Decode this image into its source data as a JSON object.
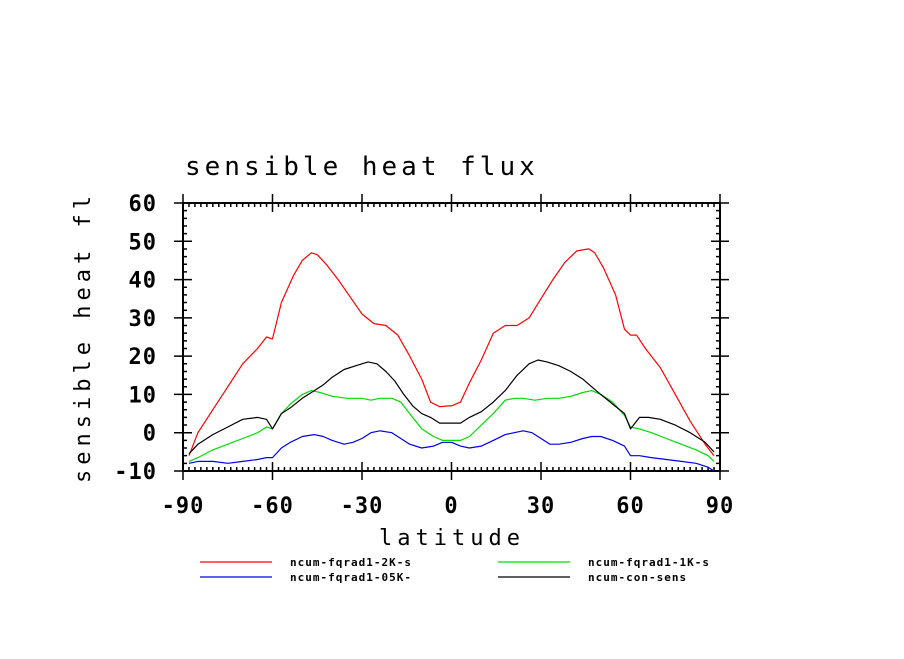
{
  "chart_data": {
    "type": "line",
    "title": "sensible heat flux",
    "xlabel": "latitude",
    "ylabel": "sensible heat fl",
    "xlim": [
      -90,
      90
    ],
    "ylim": [
      -10,
      60
    ],
    "xticks": [
      -90,
      -60,
      -30,
      0,
      30,
      60,
      90
    ],
    "yticks": [
      -10,
      0,
      10,
      20,
      30,
      40,
      50,
      60
    ],
    "xtick_labels": [
      "-90",
      "-60",
      "-30",
      "0",
      "30",
      "60",
      "90"
    ],
    "ytick_labels": [
      "-10",
      "0",
      "10",
      "20",
      "30",
      "40",
      "50",
      "60"
    ],
    "grid": false,
    "legend": "bottom",
    "series": [
      {
        "name": "ncum-fqrad1-2K-s",
        "color": "#ff0000",
        "x": [
          -88,
          -85,
          -80,
          -75,
          -70,
          -65,
          -62,
          -60,
          -57,
          -53,
          -50,
          -47,
          -45,
          -42,
          -38,
          -34,
          -30,
          -26,
          -22,
          -18,
          -14,
          -10,
          -7,
          -4,
          -1,
          0,
          3,
          6,
          10,
          14,
          18,
          22,
          26,
          30,
          34,
          38,
          42,
          46,
          48,
          51,
          55,
          58,
          60,
          62,
          65,
          70,
          75,
          80,
          85,
          88
        ],
        "y": [
          -6,
          0,
          6,
          12,
          18,
          22,
          25,
          24.5,
          34,
          41,
          45,
          47,
          46.5,
          44,
          40,
          35.5,
          31,
          28.5,
          28,
          25.5,
          20,
          14,
          8,
          6.8,
          7,
          7,
          8,
          13,
          19,
          26,
          28,
          28,
          30,
          35,
          40,
          44.5,
          47.5,
          48,
          47,
          43,
          36,
          27,
          25.5,
          25.5,
          22,
          17,
          10,
          3,
          -3,
          -6
        ]
      },
      {
        "name": "ncum-fqrad1-1K-s",
        "color": "#00dd00",
        "x": [
          -88,
          -85,
          -80,
          -75,
          -70,
          -65,
          -62,
          -60,
          -57,
          -54,
          -50,
          -47,
          -44,
          -40,
          -35,
          -30,
          -27,
          -24,
          -20,
          -17,
          -14,
          -10,
          -6,
          -3,
          0,
          3,
          6,
          10,
          14,
          18,
          21,
          24,
          28,
          32,
          36,
          40,
          44,
          47,
          50,
          54,
          58,
          60,
          63,
          67,
          72,
          77,
          82,
          86,
          88
        ],
        "y": [
          -7.5,
          -6.5,
          -4.5,
          -3,
          -1.5,
          0,
          1.5,
          1,
          5,
          7.5,
          10,
          11,
          10.5,
          9.5,
          9,
          9,
          8.5,
          9,
          9,
          8,
          5,
          1,
          -1,
          -2,
          -2,
          -2,
          -1,
          2,
          5,
          8.5,
          9,
          9,
          8.5,
          9,
          9,
          9.5,
          10.5,
          11,
          10,
          8,
          4.5,
          1.5,
          1,
          0,
          -1.5,
          -3,
          -4.5,
          -6,
          -7.5
        ]
      },
      {
        "name": "ncum-fqrad1-05K-",
        "color": "#0000ee",
        "x": [
          -88,
          -85,
          -80,
          -75,
          -70,
          -65,
          -62,
          -60,
          -57,
          -54,
          -50,
          -46,
          -43,
          -40,
          -36,
          -33,
          -30,
          -27,
          -24,
          -20,
          -17,
          -14,
          -10,
          -6,
          -3,
          0,
          3,
          6,
          10,
          14,
          18,
          21,
          24,
          27,
          30,
          33,
          36,
          40,
          44,
          47,
          50,
          54,
          58,
          60,
          63,
          67,
          72,
          77,
          82,
          86,
          88
        ],
        "y": [
          -8,
          -7.5,
          -7.5,
          -8,
          -7.5,
          -7,
          -6.5,
          -6.5,
          -4,
          -2.5,
          -1,
          -0.5,
          -1,
          -2,
          -3,
          -2.5,
          -1.5,
          0,
          0.5,
          0,
          -1.5,
          -3,
          -4,
          -3.5,
          -2.5,
          -2.5,
          -3.5,
          -4,
          -3.5,
          -2,
          -0.5,
          0,
          0.5,
          0,
          -1.5,
          -3,
          -3,
          -2.5,
          -1.5,
          -1,
          -1,
          -2,
          -3.5,
          -6,
          -6,
          -6.5,
          -7,
          -7.5,
          -8,
          -9,
          -10
        ]
      },
      {
        "name": "ncum-con-sens",
        "color": "#000000",
        "x": [
          -88,
          -85,
          -80,
          -75,
          -70,
          -65,
          -62,
          -60,
          -57,
          -54,
          -50,
          -46,
          -43,
          -40,
          -36,
          -32,
          -28,
          -25,
          -22,
          -19,
          -16,
          -13,
          -10,
          -7,
          -4,
          0,
          3,
          6,
          10,
          14,
          18,
          22,
          26,
          29,
          32,
          36,
          40,
          44,
          47,
          50,
          54,
          58,
          60,
          63,
          66,
          70,
          75,
          80,
          85,
          88
        ],
        "y": [
          -5.5,
          -3,
          -0.5,
          1.5,
          3.5,
          4,
          3.5,
          1,
          5,
          6.5,
          9,
          11,
          12.5,
          14.5,
          16.5,
          17.5,
          18.5,
          18,
          16,
          13.5,
          10,
          7,
          5,
          4,
          2.5,
          2.5,
          2.5,
          4,
          5.5,
          8,
          11,
          15,
          18,
          19,
          18.5,
          17.5,
          16,
          14,
          12,
          10,
          7.5,
          5,
          1,
          4,
          4,
          3.5,
          2,
          0,
          -2.5,
          -5
        ]
      }
    ]
  }
}
